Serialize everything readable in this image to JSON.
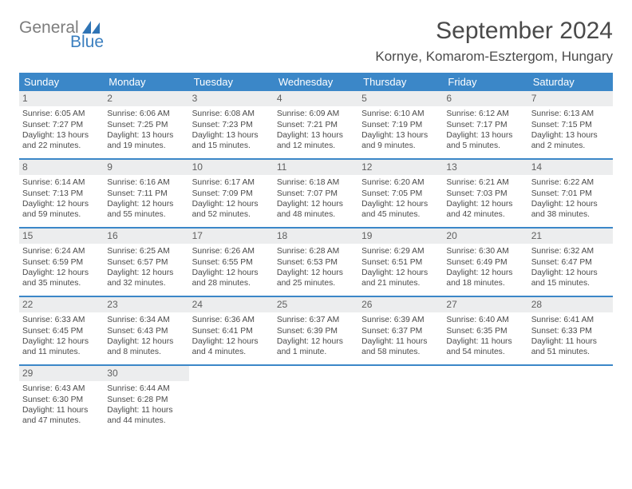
{
  "brand": {
    "word1": "General",
    "word2": "Blue"
  },
  "title": "September 2024",
  "location": "Kornye, Komarom-Esztergom, Hungary",
  "colors": {
    "header_bg": "#3b87c8",
    "header_text": "#ffffff",
    "daynum_bg": "#ecedee",
    "border": "#3b87c8",
    "logo_gray": "#7d7d7d",
    "logo_blue": "#3b7fbf",
    "body_text": "#4a4a4a"
  },
  "weekdays": [
    "Sunday",
    "Monday",
    "Tuesday",
    "Wednesday",
    "Thursday",
    "Friday",
    "Saturday"
  ],
  "weeks": [
    [
      {
        "n": "1",
        "sr": "Sunrise: 6:05 AM",
        "ss": "Sunset: 7:27 PM",
        "d1": "Daylight: 13 hours",
        "d2": "and 22 minutes."
      },
      {
        "n": "2",
        "sr": "Sunrise: 6:06 AM",
        "ss": "Sunset: 7:25 PM",
        "d1": "Daylight: 13 hours",
        "d2": "and 19 minutes."
      },
      {
        "n": "3",
        "sr": "Sunrise: 6:08 AM",
        "ss": "Sunset: 7:23 PM",
        "d1": "Daylight: 13 hours",
        "d2": "and 15 minutes."
      },
      {
        "n": "4",
        "sr": "Sunrise: 6:09 AM",
        "ss": "Sunset: 7:21 PM",
        "d1": "Daylight: 13 hours",
        "d2": "and 12 minutes."
      },
      {
        "n": "5",
        "sr": "Sunrise: 6:10 AM",
        "ss": "Sunset: 7:19 PM",
        "d1": "Daylight: 13 hours",
        "d2": "and 9 minutes."
      },
      {
        "n": "6",
        "sr": "Sunrise: 6:12 AM",
        "ss": "Sunset: 7:17 PM",
        "d1": "Daylight: 13 hours",
        "d2": "and 5 minutes."
      },
      {
        "n": "7",
        "sr": "Sunrise: 6:13 AM",
        "ss": "Sunset: 7:15 PM",
        "d1": "Daylight: 13 hours",
        "d2": "and 2 minutes."
      }
    ],
    [
      {
        "n": "8",
        "sr": "Sunrise: 6:14 AM",
        "ss": "Sunset: 7:13 PM",
        "d1": "Daylight: 12 hours",
        "d2": "and 59 minutes."
      },
      {
        "n": "9",
        "sr": "Sunrise: 6:16 AM",
        "ss": "Sunset: 7:11 PM",
        "d1": "Daylight: 12 hours",
        "d2": "and 55 minutes."
      },
      {
        "n": "10",
        "sr": "Sunrise: 6:17 AM",
        "ss": "Sunset: 7:09 PM",
        "d1": "Daylight: 12 hours",
        "d2": "and 52 minutes."
      },
      {
        "n": "11",
        "sr": "Sunrise: 6:18 AM",
        "ss": "Sunset: 7:07 PM",
        "d1": "Daylight: 12 hours",
        "d2": "and 48 minutes."
      },
      {
        "n": "12",
        "sr": "Sunrise: 6:20 AM",
        "ss": "Sunset: 7:05 PM",
        "d1": "Daylight: 12 hours",
        "d2": "and 45 minutes."
      },
      {
        "n": "13",
        "sr": "Sunrise: 6:21 AM",
        "ss": "Sunset: 7:03 PM",
        "d1": "Daylight: 12 hours",
        "d2": "and 42 minutes."
      },
      {
        "n": "14",
        "sr": "Sunrise: 6:22 AM",
        "ss": "Sunset: 7:01 PM",
        "d1": "Daylight: 12 hours",
        "d2": "and 38 minutes."
      }
    ],
    [
      {
        "n": "15",
        "sr": "Sunrise: 6:24 AM",
        "ss": "Sunset: 6:59 PM",
        "d1": "Daylight: 12 hours",
        "d2": "and 35 minutes."
      },
      {
        "n": "16",
        "sr": "Sunrise: 6:25 AM",
        "ss": "Sunset: 6:57 PM",
        "d1": "Daylight: 12 hours",
        "d2": "and 32 minutes."
      },
      {
        "n": "17",
        "sr": "Sunrise: 6:26 AM",
        "ss": "Sunset: 6:55 PM",
        "d1": "Daylight: 12 hours",
        "d2": "and 28 minutes."
      },
      {
        "n": "18",
        "sr": "Sunrise: 6:28 AM",
        "ss": "Sunset: 6:53 PM",
        "d1": "Daylight: 12 hours",
        "d2": "and 25 minutes."
      },
      {
        "n": "19",
        "sr": "Sunrise: 6:29 AM",
        "ss": "Sunset: 6:51 PM",
        "d1": "Daylight: 12 hours",
        "d2": "and 21 minutes."
      },
      {
        "n": "20",
        "sr": "Sunrise: 6:30 AM",
        "ss": "Sunset: 6:49 PM",
        "d1": "Daylight: 12 hours",
        "d2": "and 18 minutes."
      },
      {
        "n": "21",
        "sr": "Sunrise: 6:32 AM",
        "ss": "Sunset: 6:47 PM",
        "d1": "Daylight: 12 hours",
        "d2": "and 15 minutes."
      }
    ],
    [
      {
        "n": "22",
        "sr": "Sunrise: 6:33 AM",
        "ss": "Sunset: 6:45 PM",
        "d1": "Daylight: 12 hours",
        "d2": "and 11 minutes."
      },
      {
        "n": "23",
        "sr": "Sunrise: 6:34 AM",
        "ss": "Sunset: 6:43 PM",
        "d1": "Daylight: 12 hours",
        "d2": "and 8 minutes."
      },
      {
        "n": "24",
        "sr": "Sunrise: 6:36 AM",
        "ss": "Sunset: 6:41 PM",
        "d1": "Daylight: 12 hours",
        "d2": "and 4 minutes."
      },
      {
        "n": "25",
        "sr": "Sunrise: 6:37 AM",
        "ss": "Sunset: 6:39 PM",
        "d1": "Daylight: 12 hours",
        "d2": "and 1 minute."
      },
      {
        "n": "26",
        "sr": "Sunrise: 6:39 AM",
        "ss": "Sunset: 6:37 PM",
        "d1": "Daylight: 11 hours",
        "d2": "and 58 minutes."
      },
      {
        "n": "27",
        "sr": "Sunrise: 6:40 AM",
        "ss": "Sunset: 6:35 PM",
        "d1": "Daylight: 11 hours",
        "d2": "and 54 minutes."
      },
      {
        "n": "28",
        "sr": "Sunrise: 6:41 AM",
        "ss": "Sunset: 6:33 PM",
        "d1": "Daylight: 11 hours",
        "d2": "and 51 minutes."
      }
    ],
    [
      {
        "n": "29",
        "sr": "Sunrise: 6:43 AM",
        "ss": "Sunset: 6:30 PM",
        "d1": "Daylight: 11 hours",
        "d2": "and 47 minutes."
      },
      {
        "n": "30",
        "sr": "Sunrise: 6:44 AM",
        "ss": "Sunset: 6:28 PM",
        "d1": "Daylight: 11 hours",
        "d2": "and 44 minutes."
      },
      null,
      null,
      null,
      null,
      null
    ]
  ]
}
